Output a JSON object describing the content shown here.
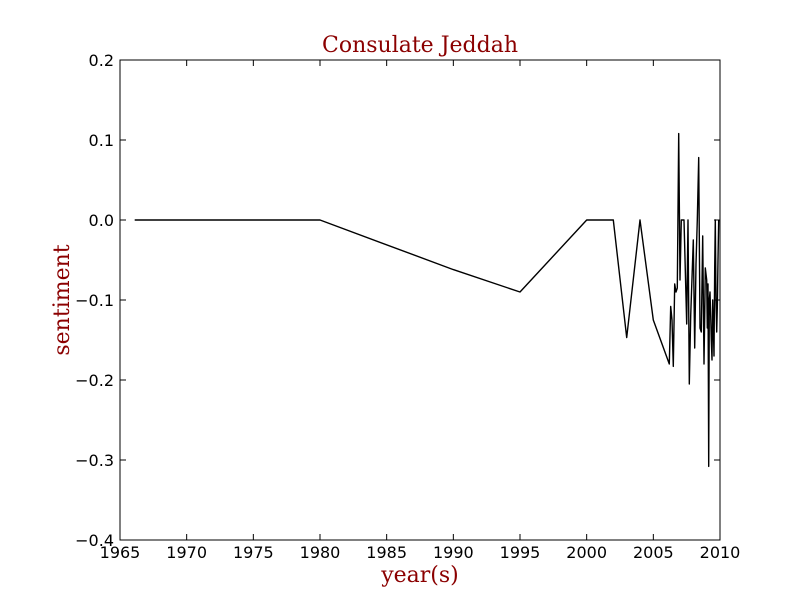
{
  "chart_data": {
    "type": "line",
    "title": "Consulate Jeddah",
    "xlabel": "year(s)",
    "ylabel": "sentiment",
    "label_color": "#8b0000",
    "line_color": "#000000",
    "xlim": [
      1965,
      2010
    ],
    "ylim": [
      -0.4,
      0.2
    ],
    "xticks": [
      1965,
      1970,
      1975,
      1980,
      1985,
      1990,
      1995,
      2000,
      2005,
      2010
    ],
    "yticks": [
      0.2,
      0.1,
      0.0,
      -0.1,
      -0.2,
      -0.3,
      -0.4
    ],
    "xtick_labels": [
      "1965",
      "1970",
      "1975",
      "1980",
      "1985",
      "1990",
      "1995",
      "2000",
      "2005",
      "2010"
    ],
    "ytick_labels": [
      "0.2",
      "0.1",
      "0.0",
      "−0.1",
      "−0.2",
      "−0.3",
      "−0.4"
    ],
    "grid": false,
    "series": [
      {
        "x": [
          1966.1,
          1980.0,
          1990.0,
          1995.0,
          2000.0,
          2002.0,
          2003.0,
          2004.0,
          2005.0,
          2006.2,
          2006.3,
          2006.4,
          2006.5,
          2006.6,
          2006.7,
          2006.8,
          2006.9,
          2007.0,
          2007.1,
          2007.2,
          2007.3,
          2007.5,
          2007.6,
          2007.7,
          2007.8,
          2008.0,
          2008.1,
          2008.2,
          2008.3,
          2008.4,
          2008.5,
          2008.6,
          2008.7,
          2008.8,
          2008.85,
          2008.9,
          2009.0,
          2009.05,
          2009.1,
          2009.15,
          2009.2,
          2009.25,
          2009.3,
          2009.35,
          2009.4,
          2009.45,
          2009.5,
          2009.55,
          2009.6,
          2009.65,
          2009.7,
          2009.75,
          2009.8,
          2009.85,
          2009.9
        ],
        "y": [
          0.0,
          0.0,
          -0.062,
          -0.09,
          0.0,
          0.0,
          -0.147,
          0.0,
          -0.125,
          -0.18,
          -0.108,
          -0.125,
          -0.183,
          -0.08,
          -0.09,
          -0.085,
          0.108,
          -0.075,
          0.0,
          0.0,
          0.0,
          -0.13,
          0.0,
          -0.205,
          -0.12,
          -0.025,
          -0.16,
          -0.055,
          0.0,
          0.078,
          -0.135,
          -0.14,
          -0.02,
          -0.18,
          -0.12,
          -0.06,
          -0.075,
          -0.135,
          -0.08,
          -0.308,
          -0.1,
          -0.09,
          -0.12,
          -0.15,
          -0.175,
          -0.1,
          -0.13,
          -0.17,
          -0.06,
          0.0,
          -0.1,
          -0.14,
          -0.11,
          -0.05,
          0.0
        ]
      }
    ]
  }
}
